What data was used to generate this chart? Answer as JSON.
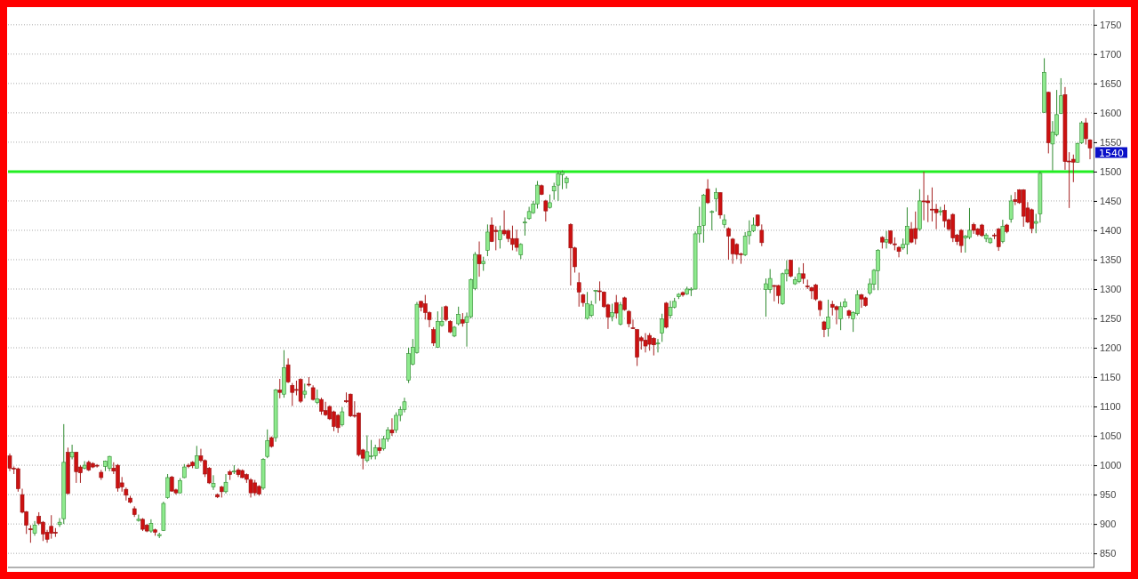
{
  "chart_data": {
    "type": "candlestick",
    "categories": [
      null,
      null,
      null,
      null,
      null,
      null,
      null,
      null,
      null,
      null,
      null,
      null,
      null,
      null,
      null,
      null,
      null,
      null,
      null,
      null,
      null,
      null,
      null,
      null,
      null,
      null,
      null,
      null,
      null,
      null,
      null,
      null,
      null,
      null,
      null,
      null,
      null,
      null,
      null,
      null,
      null,
      null,
      null,
      null,
      null,
      null,
      null,
      null,
      null,
      null,
      null,
      null,
      null,
      null,
      null,
      null,
      null,
      null,
      null,
      null,
      null,
      null,
      null,
      null,
      null,
      null,
      null,
      null,
      null,
      null,
      null,
      null,
      null,
      null,
      null,
      null,
      null,
      null,
      null,
      null,
      null,
      null,
      null,
      null,
      null,
      null,
      null,
      null,
      null,
      null,
      null,
      null,
      null,
      null,
      null,
      null,
      null,
      null,
      null,
      null,
      null,
      null,
      null,
      null,
      null,
      null,
      null,
      null,
      null,
      null,
      null,
      null,
      null,
      null,
      null,
      null,
      null,
      null,
      null,
      null,
      null,
      null,
      null,
      null,
      null,
      null,
      null,
      null,
      null,
      null,
      null,
      null,
      null,
      null,
      null,
      null,
      null,
      null,
      null,
      null,
      null,
      null,
      null,
      null,
      null,
      null,
      null,
      null,
      null,
      null,
      null,
      null,
      null,
      null,
      null,
      null,
      null,
      null,
      null,
      null,
      null,
      null,
      null,
      null,
      null,
      null,
      null,
      null,
      null,
      null,
      null,
      null,
      null,
      null,
      null,
      null,
      null,
      null,
      null,
      null,
      null,
      null,
      null,
      null,
      null,
      null,
      null,
      null,
      null,
      null,
      null,
      null,
      null,
      null,
      null,
      null,
      null,
      null,
      null,
      null,
      null,
      null,
      null,
      null,
      null,
      null,
      null,
      null,
      null,
      null,
      null,
      null,
      null,
      null,
      null,
      null,
      null,
      null,
      null,
      null,
      null,
      null,
      null,
      null,
      null,
      null,
      null,
      null,
      null,
      null,
      null,
      null,
      null,
      null,
      null,
      null,
      null,
      null,
      null,
      null,
      null,
      null,
      null,
      null,
      null,
      null,
      null,
      null,
      null,
      null,
      null,
      null,
      null,
      null,
      null,
      null,
      null,
      null,
      null,
      null,
      null
    ],
    "ohlc": [
      [
        1016,
        1020,
        990,
        995
      ],
      [
        995,
        998,
        985,
        994
      ],
      [
        994,
        996,
        955,
        960
      ],
      [
        950,
        960,
        918,
        920
      ],
      [
        921,
        922,
        883,
        898
      ],
      [
        892,
        898,
        868,
        890
      ],
      [
        884,
        905,
        880,
        898
      ],
      [
        913,
        920,
        898,
        901
      ],
      [
        903,
        905,
        871,
        883
      ],
      [
        886,
        890,
        868,
        874
      ],
      [
        896,
        915,
        875,
        884
      ],
      [
        886,
        893,
        878,
        884
      ],
      [
        899,
        910,
        895,
        903
      ],
      [
        909,
        1070,
        900,
        1005
      ],
      [
        1022,
        1030,
        950,
        952
      ],
      [
        1014,
        1035,
        1010,
        1022
      ],
      [
        1022,
        1023,
        970,
        989
      ],
      [
        997,
        1000,
        970,
        987
      ],
      [
        995,
        1007,
        993,
        1000
      ],
      [
        1005,
        1008,
        990,
        992
      ],
      [
        1003,
        1005,
        995,
        997
      ],
      [
        1000,
        1002,
        996,
        999
      ],
      [
        988,
        992,
        975,
        979
      ],
      [
        998,
        1008,
        990,
        1007
      ],
      [
        995,
        1016,
        990,
        1015
      ],
      [
        995,
        1005,
        985,
        990
      ],
      [
        1000,
        1002,
        955,
        961
      ],
      [
        970,
        980,
        955,
        963
      ],
      [
        959,
        962,
        940,
        949
      ],
      [
        944,
        948,
        935,
        937
      ],
      [
        926,
        930,
        912,
        916
      ],
      [
        906,
        916,
        904,
        908
      ],
      [
        908,
        910,
        888,
        891
      ],
      [
        898,
        900,
        886,
        888
      ],
      [
        888,
        908,
        885,
        901
      ],
      [
        890,
        892,
        880,
        886
      ],
      [
        880,
        885,
        876,
        882
      ],
      [
        889,
        938,
        888,
        935
      ],
      [
        945,
        985,
        943,
        979
      ],
      [
        980,
        982,
        955,
        956
      ],
      [
        958,
        960,
        950,
        953
      ],
      [
        953,
        978,
        952,
        974
      ],
      [
        979,
        1002,
        978,
        997
      ],
      [
        1000,
        1003,
        995,
        998
      ],
      [
        1005,
        1007,
        995,
        999
      ],
      [
        995,
        1033,
        995,
        1016
      ],
      [
        1016,
        1028,
        1005,
        1008
      ],
      [
        1008,
        1010,
        980,
        985
      ],
      [
        995,
        997,
        968,
        970
      ],
      [
        963,
        983,
        958,
        969
      ],
      [
        950,
        952,
        944,
        946
      ],
      [
        963,
        965,
        945,
        955
      ],
      [
        955,
        985,
        952,
        971
      ],
      [
        989,
        992,
        975,
        984
      ],
      [
        989,
        1000,
        985,
        990
      ],
      [
        992,
        995,
        980,
        984
      ],
      [
        991,
        993,
        978,
        979
      ],
      [
        984,
        986,
        970,
        976
      ],
      [
        975,
        978,
        945,
        953
      ],
      [
        970,
        975,
        948,
        953
      ],
      [
        964,
        966,
        948,
        951
      ],
      [
        961,
        1012,
        958,
        1010
      ],
      [
        1015,
        1061,
        1012,
        1042
      ],
      [
        1047,
        1049,
        1030,
        1032
      ],
      [
        1047,
        1130,
        1040,
        1128
      ],
      [
        1128,
        1147,
        1114,
        1124
      ],
      [
        1121,
        1196,
        1115,
        1166
      ],
      [
        1171,
        1182,
        1140,
        1142
      ],
      [
        1136,
        1140,
        1101,
        1124
      ],
      [
        1129,
        1144,
        1119,
        1128
      ],
      [
        1146,
        1148,
        1106,
        1109
      ],
      [
        1121,
        1139,
        1114,
        1126
      ],
      [
        1138,
        1150,
        1134,
        1137
      ],
      [
        1132,
        1136,
        1110,
        1112
      ],
      [
        1107,
        1129,
        1104,
        1113
      ],
      [
        1112,
        1115,
        1086,
        1092
      ],
      [
        1093,
        1108,
        1084,
        1086
      ],
      [
        1100,
        1102,
        1077,
        1079
      ],
      [
        1091,
        1093,
        1058,
        1066
      ],
      [
        1085,
        1087,
        1055,
        1064
      ],
      [
        1069,
        1099,
        1066,
        1091
      ],
      [
        1110,
        1124,
        1106,
        1108
      ],
      [
        1121,
        1122,
        1082,
        1084
      ],
      [
        1085,
        1109,
        1081,
        1084
      ],
      [
        1089,
        1090,
        1015,
        1018
      ],
      [
        1026,
        1028,
        993,
        1012
      ],
      [
        1008,
        1051,
        1005,
        1023
      ],
      [
        1015,
        1043,
        1010,
        1016
      ],
      [
        1016,
        1035,
        1010,
        1030
      ],
      [
        1030,
        1045,
        1020,
        1025
      ],
      [
        1028,
        1050,
        1025,
        1045
      ],
      [
        1045,
        1065,
        1040,
        1060
      ],
      [
        1060,
        1080,
        1050,
        1055
      ],
      [
        1060,
        1090,
        1055,
        1085
      ],
      [
        1085,
        1100,
        1075,
        1095
      ],
      [
        1095,
        1115,
        1090,
        1108
      ],
      [
        1145,
        1200,
        1140,
        1190
      ],
      [
        1172,
        1215,
        1170,
        1201
      ],
      [
        1192,
        1278,
        1190,
        1274
      ],
      [
        1279,
        1280,
        1262,
        1269
      ],
      [
        1275,
        1290,
        1248,
        1260
      ],
      [
        1260,
        1262,
        1235,
        1248
      ],
      [
        1231,
        1235,
        1203,
        1208
      ],
      [
        1201,
        1262,
        1200,
        1245
      ],
      [
        1238,
        1270,
        1236,
        1245
      ],
      [
        1270,
        1272,
        1245,
        1248
      ],
      [
        1245,
        1247,
        1225,
        1227
      ],
      [
        1220,
        1237,
        1218,
        1235
      ],
      [
        1241,
        1270,
        1238,
        1257
      ],
      [
        1248,
        1259,
        1236,
        1242
      ],
      [
        1243,
        1260,
        1202,
        1253
      ],
      [
        1253,
        1318,
        1250,
        1316
      ],
      [
        1301,
        1363,
        1298,
        1359
      ],
      [
        1358,
        1381,
        1321,
        1343
      ],
      [
        1343,
        1355,
        1331,
        1347
      ],
      [
        1366,
        1410,
        1356,
        1397
      ],
      [
        1409,
        1422,
        1380,
        1381
      ],
      [
        1400,
        1407,
        1366,
        1398
      ],
      [
        1384,
        1408,
        1369,
        1399
      ],
      [
        1400,
        1434,
        1391,
        1394
      ],
      [
        1399,
        1402,
        1380,
        1386
      ],
      [
        1386,
        1408,
        1366,
        1376
      ],
      [
        1386,
        1401,
        1364,
        1371
      ],
      [
        1358,
        1378,
        1351,
        1376
      ],
      [
        1413,
        1422,
        1391,
        1414
      ],
      [
        1420,
        1440,
        1418,
        1432
      ],
      [
        1430,
        1450,
        1428,
        1445
      ],
      [
        1445,
        1484,
        1437,
        1477
      ],
      [
        1476,
        1478,
        1460,
        1461
      ],
      [
        1450,
        1452,
        1415,
        1433
      ],
      [
        1439,
        1461,
        1437,
        1447
      ],
      [
        1467,
        1481,
        1452,
        1475
      ],
      [
        1477,
        1500,
        1450,
        1496
      ],
      [
        1495,
        1502,
        1470,
        1499
      ],
      [
        1481,
        1492,
        1471,
        1489
      ],
      [
        1410,
        1412,
        1306,
        1370
      ],
      [
        1370,
        1372,
        1328,
        1338
      ],
      [
        1311,
        1328,
        1270,
        1295
      ],
      [
        1290,
        1292,
        1270,
        1277
      ],
      [
        1250,
        1295,
        1248,
        1275
      ],
      [
        1255,
        1280,
        1252,
        1273
      ],
      [
        1297,
        1298,
        1275,
        1298
      ],
      [
        1297,
        1313,
        1280,
        1296
      ],
      [
        1295,
        1296,
        1268,
        1270
      ],
      [
        1273,
        1275,
        1232,
        1252
      ],
      [
        1253,
        1275,
        1245,
        1260
      ],
      [
        1277,
        1290,
        1250,
        1259
      ],
      [
        1240,
        1278,
        1238,
        1273
      ],
      [
        1285,
        1287,
        1263,
        1265
      ],
      [
        1262,
        1264,
        1235,
        1241
      ],
      [
        1234,
        1248,
        1232,
        1233
      ],
      [
        1231,
        1232,
        1169,
        1184
      ],
      [
        1217,
        1220,
        1197,
        1212
      ],
      [
        1213,
        1225,
        1192,
        1203
      ],
      [
        1221,
        1225,
        1195,
        1206
      ],
      [
        1216,
        1218,
        1187,
        1205
      ],
      [
        1207,
        1215,
        1192,
        1208
      ],
      [
        1225,
        1258,
        1210,
        1249
      ],
      [
        1276,
        1278,
        1233,
        1235
      ],
      [
        1255,
        1280,
        1250,
        1269
      ],
      [
        1269,
        1285,
        1267,
        1279
      ],
      [
        1287,
        1293,
        1283,
        1291
      ],
      [
        1294,
        1296,
        1287,
        1290
      ],
      [
        1292,
        1304,
        1290,
        1300
      ],
      [
        1299,
        1303,
        1288,
        1300
      ],
      [
        1300,
        1398,
        1299,
        1394
      ],
      [
        1394,
        1440,
        1379,
        1407
      ],
      [
        1408,
        1462,
        1379,
        1460
      ],
      [
        1470,
        1487,
        1445,
        1447
      ],
      [
        1431,
        1434,
        1400,
        1432
      ],
      [
        1454,
        1472,
        1432,
        1464
      ],
      [
        1464,
        1465,
        1420,
        1426
      ],
      [
        1410,
        1427,
        1404,
        1418
      ],
      [
        1403,
        1405,
        1350,
        1390
      ],
      [
        1385,
        1387,
        1343,
        1360
      ],
      [
        1376,
        1378,
        1351,
        1359
      ],
      [
        1360,
        1362,
        1343,
        1359
      ],
      [
        1358,
        1397,
        1356,
        1390
      ],
      [
        1391,
        1417,
        1376,
        1398
      ],
      [
        1399,
        1422,
        1397,
        1409
      ],
      [
        1426,
        1427,
        1406,
        1408
      ],
      [
        1400,
        1410,
        1373,
        1379
      ],
      [
        1299,
        1318,
        1253,
        1309
      ],
      [
        1299,
        1334,
        1293,
        1318
      ],
      [
        1306,
        1307,
        1279,
        1305
      ],
      [
        1306,
        1307,
        1275,
        1289
      ],
      [
        1275,
        1328,
        1273,
        1326
      ],
      [
        1326,
        1349,
        1313,
        1333
      ],
      [
        1349,
        1350,
        1320,
        1322
      ],
      [
        1309,
        1321,
        1307,
        1316
      ],
      [
        1313,
        1337,
        1310,
        1326
      ],
      [
        1326,
        1344,
        1309,
        1318
      ],
      [
        1305,
        1316,
        1300,
        1304
      ],
      [
        1302,
        1304,
        1283,
        1297
      ],
      [
        1307,
        1309,
        1280,
        1283
      ],
      [
        1279,
        1281,
        1254,
        1265
      ],
      [
        1244,
        1246,
        1218,
        1231
      ],
      [
        1233,
        1282,
        1219,
        1252
      ],
      [
        1274,
        1280,
        1255,
        1269
      ],
      [
        1270,
        1272,
        1240,
        1265
      ],
      [
        1249,
        1278,
        1230,
        1270
      ],
      [
        1270,
        1284,
        1268,
        1278
      ],
      [
        1263,
        1265,
        1250,
        1255
      ],
      [
        1249,
        1262,
        1227,
        1260
      ],
      [
        1258,
        1298,
        1255,
        1290
      ],
      [
        1290,
        1292,
        1268,
        1283
      ],
      [
        1285,
        1287,
        1270,
        1272
      ],
      [
        1293,
        1318,
        1290,
        1309
      ],
      [
        1308,
        1334,
        1298,
        1332
      ],
      [
        1331,
        1368,
        1298,
        1366
      ],
      [
        1388,
        1390,
        1369,
        1380
      ],
      [
        1380,
        1399,
        1369,
        1384
      ],
      [
        1399,
        1400,
        1376,
        1378
      ],
      [
        1377,
        1388,
        1366,
        1376
      ],
      [
        1371,
        1373,
        1354,
        1364
      ],
      [
        1370,
        1386,
        1367,
        1376
      ],
      [
        1376,
        1439,
        1359,
        1407
      ],
      [
        1402,
        1414,
        1378,
        1380
      ],
      [
        1403,
        1432,
        1376,
        1386
      ],
      [
        1402,
        1470,
        1399,
        1450
      ],
      [
        1450,
        1500,
        1417,
        1449
      ],
      [
        1450,
        1460,
        1414,
        1447
      ],
      [
        1436,
        1473,
        1415,
        1435
      ],
      [
        1436,
        1445,
        1402,
        1430
      ],
      [
        1432,
        1440,
        1425,
        1433
      ],
      [
        1434,
        1444,
        1405,
        1416
      ],
      [
        1418,
        1420,
        1399,
        1402
      ],
      [
        1427,
        1429,
        1380,
        1387
      ],
      [
        1392,
        1394,
        1375,
        1381
      ],
      [
        1400,
        1402,
        1362,
        1374
      ],
      [
        1387,
        1392,
        1362,
        1390
      ],
      [
        1388,
        1438,
        1385,
        1400
      ],
      [
        1410,
        1413,
        1394,
        1400
      ],
      [
        1402,
        1404,
        1390,
        1393
      ],
      [
        1409,
        1411,
        1389,
        1391
      ],
      [
        1386,
        1395,
        1380,
        1392
      ],
      [
        1379,
        1388,
        1377,
        1386
      ],
      [
        1392,
        1395,
        1385,
        1391
      ],
      [
        1402,
        1404,
        1365,
        1372
      ],
      [
        1381,
        1418,
        1378,
        1407
      ],
      [
        1409,
        1411,
        1395,
        1398
      ],
      [
        1419,
        1460,
        1413,
        1450
      ],
      [
        1452,
        1465,
        1443,
        1449
      ],
      [
        1469,
        1470,
        1445,
        1447
      ],
      [
        1469,
        1470,
        1406,
        1424
      ],
      [
        1438,
        1448,
        1412,
        1414
      ],
      [
        1435,
        1437,
        1395,
        1403
      ],
      [
        1412,
        1428,
        1395,
        1415
      ],
      [
        1428,
        1500,
        1413,
        1497
      ],
      [
        1601,
        1693,
        1600,
        1669
      ],
      [
        1635,
        1636,
        1531,
        1549
      ],
      [
        1547,
        1586,
        1502,
        1567
      ],
      [
        1563,
        1639,
        1560,
        1597
      ],
      [
        1599,
        1659,
        1598,
        1629
      ],
      [
        1631,
        1644,
        1503,
        1517
      ],
      [
        1518,
        1533,
        1438,
        1517
      ],
      [
        1521,
        1529,
        1482,
        1516
      ],
      [
        1516,
        1549,
        1515,
        1548
      ],
      [
        1549,
        1586,
        1547,
        1583
      ],
      [
        1583,
        1591,
        1546,
        1556
      ],
      [
        1554,
        1555,
        1521,
        1540
      ]
    ],
    "ylim": [
      826,
      1777
    ],
    "yticks": [
      850,
      900,
      950,
      1000,
      1050,
      1100,
      1150,
      1200,
      1250,
      1300,
      1350,
      1400,
      1450,
      1500,
      1550,
      1600,
      1650,
      1700,
      1750
    ],
    "grid": "y",
    "tick_labels": "y",
    "ref_lines": [
      {
        "axis": "y",
        "value": 1500,
        "color": "#22ee22"
      }
    ],
    "annotations": [
      "1540"
    ]
  }
}
